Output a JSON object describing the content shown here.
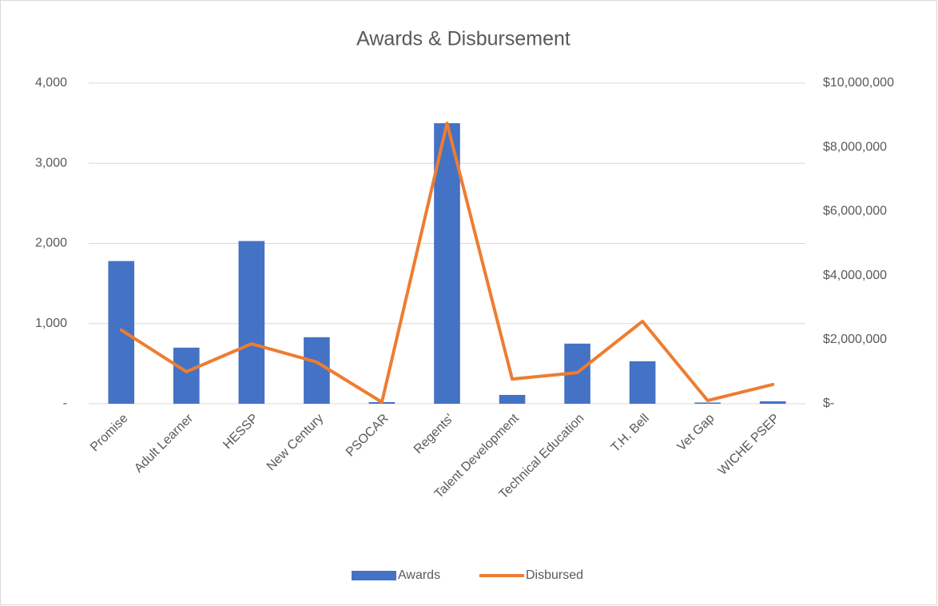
{
  "chart_data": {
    "type": "bar_line",
    "title": "Awards & Disbursement",
    "categories": [
      "Promise",
      "Adult Learner",
      "HESSP",
      "New Century",
      "PSOCAR",
      "Regents'",
      "Talent Development",
      "Technical Education",
      "T.H. Bell",
      "Vet Gap",
      "WICHE PSEP"
    ],
    "series": [
      {
        "name": "Awards",
        "type": "bar",
        "color": "#4472c4",
        "values": [
          1780,
          700,
          2030,
          830,
          20,
          3500,
          110,
          750,
          530,
          15,
          30
        ]
      },
      {
        "name": "Disbursed",
        "type": "line",
        "axis": "y2",
        "color": "#ed7d31",
        "values": [
          2300000,
          1000000,
          1870000,
          1300000,
          50000,
          8750000,
          770000,
          970000,
          2570000,
          100000,
          600000
        ]
      }
    ],
    "ylim": [
      0,
      4000
    ],
    "yticks": [
      {
        "value": 0,
        "label": "-"
      },
      {
        "value": 1000,
        "label": "1,000"
      },
      {
        "value": 2000,
        "label": "2,000"
      },
      {
        "value": 3000,
        "label": "3,000"
      },
      {
        "value": 4000,
        "label": "4,000"
      }
    ],
    "y2lim": [
      0,
      10000000
    ],
    "y2ticks": [
      {
        "value": 0,
        "label": "$-"
      },
      {
        "value": 2000000,
        "label": "$2,000,000"
      },
      {
        "value": 4000000,
        "label": "$4,000,000"
      },
      {
        "value": 6000000,
        "label": "$6,000,000"
      },
      {
        "value": 8000000,
        "label": "$8,000,000"
      },
      {
        "value": 10000000,
        "label": "$10,000,000"
      }
    ],
    "grid": true,
    "legend": "bottom"
  }
}
